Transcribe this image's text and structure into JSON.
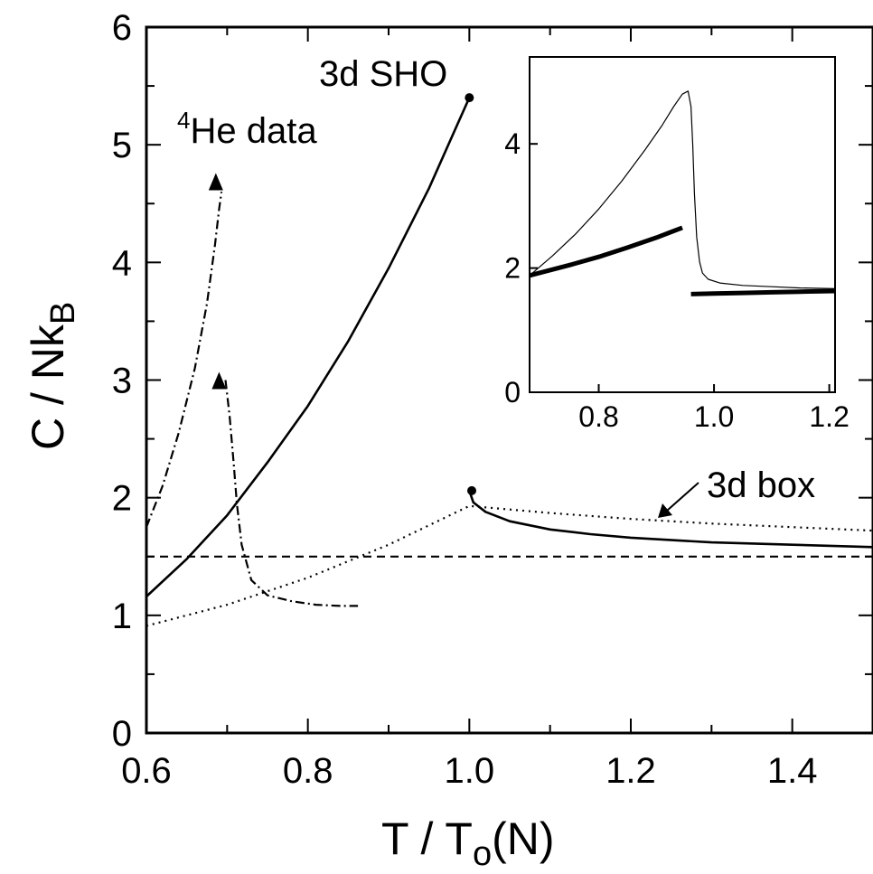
{
  "chart_data": [
    {
      "id": "main",
      "type": "line",
      "xlabel": "T / T",
      "xlabel_sub": "o",
      "xlabel_suffix": "(N)",
      "ylabel": "C / Nk",
      "ylabel_sub": "B",
      "xlim": [
        0.6,
        1.5
      ],
      "ylim": [
        0,
        6
      ],
      "xticks": [
        0.6,
        0.8,
        1.0,
        1.2,
        1.4
      ],
      "xtick_labels": [
        "0.6",
        "0.8",
        "1.0",
        "1.2",
        "1.4"
      ],
      "yticks": [
        0,
        1,
        2,
        3,
        4,
        5,
        6
      ],
      "ytick_labels": [
        "0",
        "1",
        "2",
        "3",
        "4",
        "5",
        "6"
      ],
      "annotations": {
        "sho": "3d SHO",
        "he_sup": "4",
        "he": "He data",
        "box": "3d box"
      },
      "series": [
        {
          "key": "sho_low",
          "style": "solid",
          "x": [
            0.6,
            0.65,
            0.7,
            0.75,
            0.8,
            0.85,
            0.9,
            0.95,
            1.0
          ],
          "y": [
            1.16,
            1.48,
            1.85,
            2.3,
            2.78,
            3.33,
            3.95,
            4.63,
            5.4
          ]
        },
        {
          "key": "sho_high",
          "style": "solid",
          "x": [
            1.0,
            1.005,
            1.02,
            1.05,
            1.1,
            1.15,
            1.2,
            1.3,
            1.4,
            1.5
          ],
          "y": [
            2.06,
            1.96,
            1.88,
            1.8,
            1.73,
            1.69,
            1.66,
            1.62,
            1.6,
            1.58
          ]
        },
        {
          "key": "box",
          "style": "dotted",
          "x": [
            0.6,
            0.7,
            0.8,
            0.9,
            1.0,
            1.1,
            1.2,
            1.3,
            1.4,
            1.5
          ],
          "y": [
            0.91,
            1.09,
            1.32,
            1.6,
            1.93,
            1.87,
            1.82,
            1.78,
            1.75,
            1.72
          ]
        },
        {
          "key": "classical",
          "style": "dashed",
          "x": [
            0.6,
            1.5
          ],
          "y": [
            1.5,
            1.5
          ]
        },
        {
          "key": "he_left",
          "style": "dashdot",
          "x": [
            0.6,
            0.62,
            0.64,
            0.66,
            0.675,
            0.685,
            0.69,
            0.693
          ],
          "y": [
            1.75,
            2.1,
            2.55,
            3.1,
            3.65,
            4.15,
            4.45,
            4.6
          ]
        },
        {
          "key": "he_right",
          "style": "dashdot",
          "x": [
            0.698,
            0.703,
            0.708,
            0.712,
            0.718,
            0.73,
            0.75,
            0.78,
            0.81,
            0.84,
            0.862
          ],
          "y": [
            3.0,
            2.7,
            2.3,
            1.95,
            1.6,
            1.3,
            1.17,
            1.12,
            1.09,
            1.08,
            1.08
          ]
        }
      ],
      "markers": [
        {
          "shape": "dot",
          "x": 1.0,
          "y": 5.4
        },
        {
          "shape": "dot",
          "x": 1.003,
          "y": 2.06
        },
        {
          "shape": "triangle",
          "x": 0.686,
          "y": 4.69
        },
        {
          "shape": "triangle",
          "x": 0.69,
          "y": 3.0
        }
      ]
    },
    {
      "id": "inset",
      "type": "line",
      "xlim": [
        0.68,
        1.21
      ],
      "ylim": [
        0,
        5.4
      ],
      "xticks": [
        0.8,
        1.0,
        1.2
      ],
      "xtick_labels": [
        "0.8",
        "1.0",
        "1.2"
      ],
      "yticks": [
        0,
        2,
        4
      ],
      "ytick_labels": [
        "0",
        "2",
        "4"
      ],
      "series": [
        {
          "key": "thin",
          "style": "thin",
          "x": [
            0.68,
            0.72,
            0.76,
            0.8,
            0.84,
            0.88,
            0.91,
            0.93,
            0.945,
            0.955,
            0.96,
            0.963,
            0.966,
            0.97,
            0.975,
            0.98,
            0.99,
            1.01,
            1.05,
            1.1,
            1.15,
            1.21
          ],
          "y": [
            1.88,
            2.2,
            2.55,
            2.95,
            3.4,
            3.9,
            4.3,
            4.6,
            4.8,
            4.85,
            4.6,
            4.0,
            3.2,
            2.5,
            2.1,
            1.92,
            1.82,
            1.76,
            1.72,
            1.7,
            1.68,
            1.67
          ]
        },
        {
          "key": "thick_low",
          "style": "thick",
          "x": [
            0.68,
            0.75,
            0.8,
            0.85,
            0.9,
            0.945
          ],
          "y": [
            1.88,
            2.05,
            2.18,
            2.33,
            2.49,
            2.65
          ]
        },
        {
          "key": "thick_high",
          "style": "thick",
          "x": [
            0.96,
            1.0,
            1.05,
            1.1,
            1.15,
            1.21
          ],
          "y": [
            1.58,
            1.59,
            1.6,
            1.61,
            1.62,
            1.63
          ]
        }
      ]
    }
  ]
}
